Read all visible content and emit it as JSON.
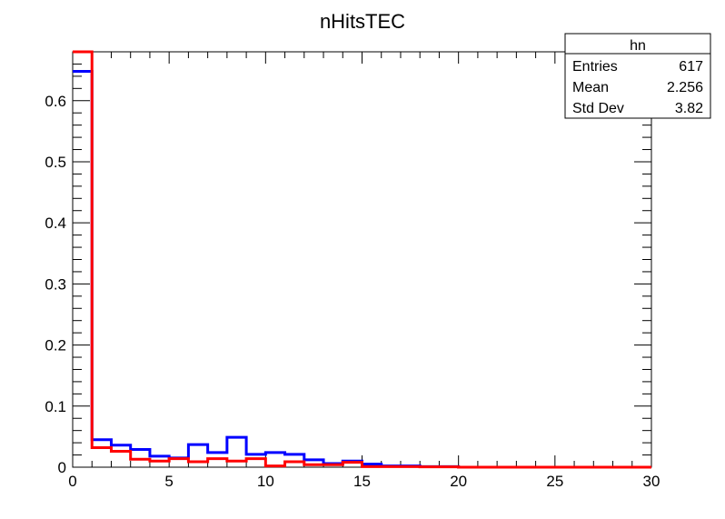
{
  "chart_data": {
    "type": "histogram",
    "title": "nHitsTEC",
    "xlabel": "",
    "ylabel": "",
    "xlim": [
      0,
      30
    ],
    "ylim": [
      0,
      0.68
    ],
    "bin_width": 1,
    "x_ticks": [
      0,
      5,
      10,
      15,
      20,
      25,
      30
    ],
    "y_ticks": [
      0,
      0.1,
      0.2,
      0.3,
      0.4,
      0.5,
      0.6
    ],
    "x_tick_labels": [
      "0",
      "5",
      "10",
      "15",
      "20",
      "25",
      "30"
    ],
    "y_tick_labels": [
      "0",
      "0.1",
      "0.2",
      "0.3",
      "0.4",
      "0.5",
      "0.6"
    ],
    "grid": false,
    "series": [
      {
        "color": "#0000ff",
        "values": [
          0.648,
          0.045,
          0.036,
          0.029,
          0.018,
          0.015,
          0.037,
          0.024,
          0.049,
          0.021,
          0.024,
          0.021,
          0.012,
          0.006,
          0.01,
          0.005,
          0.002,
          0.002,
          0.001,
          0.001,
          0,
          0,
          0,
          0,
          0,
          0,
          0,
          0,
          0,
          0
        ]
      },
      {
        "color": "#ff0000",
        "values": [
          0.68,
          0.032,
          0.026,
          0.013,
          0.01,
          0.014,
          0.009,
          0.014,
          0.01,
          0.014,
          0.002,
          0.009,
          0.004,
          0.004,
          0.008,
          0.001,
          0.001,
          0.001,
          0.0005,
          0.0005,
          0,
          0,
          0,
          0,
          0,
          0,
          0,
          0,
          0,
          0
        ]
      }
    ]
  },
  "stats_box": {
    "title": "hn",
    "rows": [
      {
        "label": "Entries",
        "value": "617"
      },
      {
        "label": "Mean",
        "value": "2.256"
      },
      {
        "label": "Std Dev",
        "value": "3.82"
      }
    ]
  }
}
